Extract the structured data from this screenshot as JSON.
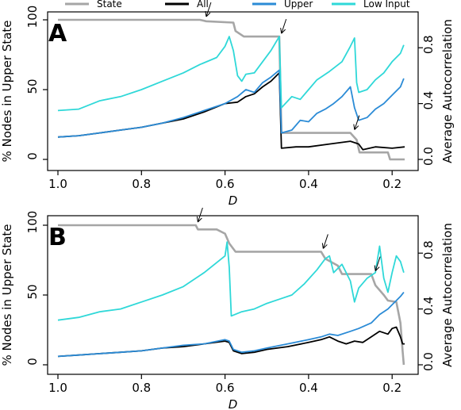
{
  "legend": [
    {
      "label": "State",
      "color": "#a6a6a6"
    },
    {
      "label": "All",
      "color": "#000000"
    },
    {
      "label": "Upper",
      "color": "#2b8bd6"
    },
    {
      "label": "Low Input",
      "color": "#2fd8d8"
    }
  ],
  "chart_data": [
    {
      "panel_label": "A",
      "type": "line",
      "xlabel": "D",
      "ylabel_left": "% Nodes in Upper State",
      "ylabel_right": "Average Autocorrelation",
      "xlim": [
        1.0,
        0.17
      ],
      "x_reversed": true,
      "ylim_left": [
        0,
        100
      ],
      "ylim_right": [
        0,
        1.0
      ],
      "x_ticks": [
        "1.0",
        "0.8",
        "0.6",
        "0.4",
        "0.2"
      ],
      "x_tick_values": [
        1.0,
        0.8,
        0.6,
        0.4,
        0.2
      ],
      "y_ticks_left": [
        "0",
        "50",
        "100"
      ],
      "y_tick_values_left": [
        0,
        50,
        100
      ],
      "y_ticks_right": [
        "0.0",
        "0.4",
        "0.8"
      ],
      "y_tick_values_right": [
        0.0,
        0.4,
        0.8
      ],
      "arrows_at_D": [
        0.645,
        0.465,
        0.29
      ],
      "series": [
        {
          "name": "State",
          "axis": "left",
          "color": "#a6a6a6",
          "points": [
            [
              1.0,
              100
            ],
            [
              0.66,
              100
            ],
            [
              0.645,
              99
            ],
            [
              0.58,
              98
            ],
            [
              0.575,
              92
            ],
            [
              0.555,
              88
            ],
            [
              0.47,
              88
            ],
            [
              0.465,
              19
            ],
            [
              0.3,
              19
            ],
            [
              0.285,
              14
            ],
            [
              0.278,
              5
            ],
            [
              0.21,
              5
            ],
            [
              0.205,
              0
            ],
            [
              0.17,
              0
            ]
          ]
        },
        {
          "name": "All",
          "axis": "right",
          "color": "#000000",
          "points": [
            [
              1.0,
              0.16
            ],
            [
              0.95,
              0.17
            ],
            [
              0.9,
              0.19
            ],
            [
              0.85,
              0.21
            ],
            [
              0.8,
              0.23
            ],
            [
              0.75,
              0.26
            ],
            [
              0.7,
              0.29
            ],
            [
              0.65,
              0.34
            ],
            [
              0.6,
              0.4
            ],
            [
              0.57,
              0.41
            ],
            [
              0.55,
              0.45
            ],
            [
              0.53,
              0.47
            ],
            [
              0.51,
              0.52
            ],
            [
              0.49,
              0.56
            ],
            [
              0.47,
              0.62
            ],
            [
              0.465,
              0.08
            ],
            [
              0.43,
              0.09
            ],
            [
              0.4,
              0.09
            ],
            [
              0.35,
              0.11
            ],
            [
              0.3,
              0.13
            ],
            [
              0.28,
              0.11
            ],
            [
              0.27,
              0.07
            ],
            [
              0.24,
              0.09
            ],
            [
              0.2,
              0.08
            ],
            [
              0.17,
              0.09
            ]
          ]
        },
        {
          "name": "Upper",
          "axis": "right",
          "color": "#2b8bd6",
          "points": [
            [
              1.0,
              0.16
            ],
            [
              0.95,
              0.17
            ],
            [
              0.9,
              0.19
            ],
            [
              0.85,
              0.21
            ],
            [
              0.8,
              0.23
            ],
            [
              0.75,
              0.26
            ],
            [
              0.7,
              0.3
            ],
            [
              0.65,
              0.35
            ],
            [
              0.6,
              0.4
            ],
            [
              0.57,
              0.45
            ],
            [
              0.55,
              0.5
            ],
            [
              0.53,
              0.48
            ],
            [
              0.51,
              0.55
            ],
            [
              0.49,
              0.59
            ],
            [
              0.47,
              0.64
            ],
            [
              0.465,
              0.19
            ],
            [
              0.44,
              0.21
            ],
            [
              0.42,
              0.28
            ],
            [
              0.4,
              0.27
            ],
            [
              0.38,
              0.33
            ],
            [
              0.36,
              0.36
            ],
            [
              0.34,
              0.4
            ],
            [
              0.32,
              0.45
            ],
            [
              0.3,
              0.52
            ],
            [
              0.29,
              0.37
            ],
            [
              0.28,
              0.28
            ],
            [
              0.26,
              0.3
            ],
            [
              0.24,
              0.36
            ],
            [
              0.22,
              0.4
            ],
            [
              0.2,
              0.46
            ],
            [
              0.18,
              0.52
            ],
            [
              0.172,
              0.58
            ]
          ]
        },
        {
          "name": "Low Input",
          "axis": "right",
          "color": "#2fd8d8",
          "points": [
            [
              1.0,
              0.35
            ],
            [
              0.95,
              0.36
            ],
            [
              0.9,
              0.42
            ],
            [
              0.85,
              0.45
            ],
            [
              0.8,
              0.5
            ],
            [
              0.75,
              0.56
            ],
            [
              0.7,
              0.62
            ],
            [
              0.66,
              0.68
            ],
            [
              0.62,
              0.73
            ],
            [
              0.6,
              0.81
            ],
            [
              0.59,
              0.88
            ],
            [
              0.58,
              0.78
            ],
            [
              0.57,
              0.6
            ],
            [
              0.56,
              0.56
            ],
            [
              0.55,
              0.61
            ],
            [
              0.53,
              0.62
            ],
            [
              0.51,
              0.7
            ],
            [
              0.49,
              0.78
            ],
            [
              0.47,
              0.88
            ],
            [
              0.465,
              0.37
            ],
            [
              0.44,
              0.45
            ],
            [
              0.42,
              0.43
            ],
            [
              0.4,
              0.5
            ],
            [
              0.38,
              0.57
            ],
            [
              0.35,
              0.63
            ],
            [
              0.32,
              0.7
            ],
            [
              0.3,
              0.81
            ],
            [
              0.29,
              0.87
            ],
            [
              0.285,
              0.55
            ],
            [
              0.28,
              0.48
            ],
            [
              0.26,
              0.5
            ],
            [
              0.24,
              0.57
            ],
            [
              0.22,
              0.62
            ],
            [
              0.2,
              0.7
            ],
            [
              0.18,
              0.76
            ],
            [
              0.172,
              0.82
            ]
          ]
        }
      ]
    },
    {
      "panel_label": "B",
      "type": "line",
      "xlabel": "D",
      "ylabel_left": "% Nodes in Upper State",
      "ylabel_right": "Average Autocorrelation",
      "xlim": [
        1.0,
        0.17
      ],
      "x_reversed": true,
      "ylim_left": [
        0,
        100
      ],
      "ylim_right": [
        0,
        1.0
      ],
      "x_ticks": [
        "1.0",
        "0.8",
        "0.6",
        "0.4",
        "0.2"
      ],
      "x_tick_values": [
        1.0,
        0.8,
        0.6,
        0.4,
        0.2
      ],
      "y_ticks_left": [
        "0",
        "50",
        "100"
      ],
      "y_tick_values_left": [
        0,
        50,
        100
      ],
      "y_ticks_right": [
        "0.0",
        "0.4",
        "0.8"
      ],
      "y_tick_values_right": [
        0.0,
        0.4,
        0.8
      ],
      "arrows_at_D": [
        0.665,
        0.365,
        0.24
      ],
      "series": [
        {
          "name": "State",
          "axis": "left",
          "color": "#a6a6a6",
          "points": [
            [
              1.0,
              100
            ],
            [
              0.67,
              100
            ],
            [
              0.665,
              97
            ],
            [
              0.62,
              97
            ],
            [
              0.6,
              94
            ],
            [
              0.59,
              87
            ],
            [
              0.575,
              81
            ],
            [
              0.37,
              81
            ],
            [
              0.36,
              76
            ],
            [
              0.33,
              71
            ],
            [
              0.32,
              65
            ],
            [
              0.25,
              65
            ],
            [
              0.24,
              57
            ],
            [
              0.22,
              50
            ],
            [
              0.21,
              46
            ],
            [
              0.19,
              45
            ],
            [
              0.18,
              30
            ],
            [
              0.175,
              10
            ],
            [
              0.172,
              0
            ]
          ]
        },
        {
          "name": "All",
          "axis": "right",
          "color": "#000000",
          "points": [
            [
              1.0,
              0.06
            ],
            [
              0.95,
              0.07
            ],
            [
              0.9,
              0.08
            ],
            [
              0.85,
              0.09
            ],
            [
              0.8,
              0.1
            ],
            [
              0.75,
              0.12
            ],
            [
              0.7,
              0.13
            ],
            [
              0.65,
              0.15
            ],
            [
              0.6,
              0.17
            ],
            [
              0.59,
              0.16
            ],
            [
              0.58,
              0.1
            ],
            [
              0.56,
              0.08
            ],
            [
              0.53,
              0.09
            ],
            [
              0.5,
              0.11
            ],
            [
              0.45,
              0.13
            ],
            [
              0.4,
              0.16
            ],
            [
              0.37,
              0.18
            ],
            [
              0.35,
              0.2
            ],
            [
              0.33,
              0.17
            ],
            [
              0.31,
              0.15
            ],
            [
              0.29,
              0.17
            ],
            [
              0.27,
              0.16
            ],
            [
              0.25,
              0.2
            ],
            [
              0.23,
              0.24
            ],
            [
              0.21,
              0.22
            ],
            [
              0.2,
              0.26
            ],
            [
              0.19,
              0.27
            ],
            [
              0.18,
              0.2
            ],
            [
              0.175,
              0.15
            ],
            [
              0.17,
              0.15
            ]
          ]
        },
        {
          "name": "Upper",
          "axis": "right",
          "color": "#2b8bd6",
          "points": [
            [
              1.0,
              0.06
            ],
            [
              0.95,
              0.07
            ],
            [
              0.9,
              0.08
            ],
            [
              0.85,
              0.09
            ],
            [
              0.8,
              0.1
            ],
            [
              0.75,
              0.12
            ],
            [
              0.7,
              0.14
            ],
            [
              0.65,
              0.15
            ],
            [
              0.6,
              0.18
            ],
            [
              0.59,
              0.17
            ],
            [
              0.58,
              0.11
            ],
            [
              0.56,
              0.09
            ],
            [
              0.53,
              0.1
            ],
            [
              0.5,
              0.12
            ],
            [
              0.45,
              0.15
            ],
            [
              0.4,
              0.18
            ],
            [
              0.37,
              0.2
            ],
            [
              0.35,
              0.22
            ],
            [
              0.33,
              0.21
            ],
            [
              0.3,
              0.24
            ],
            [
              0.28,
              0.26
            ],
            [
              0.25,
              0.3
            ],
            [
              0.23,
              0.36
            ],
            [
              0.21,
              0.4
            ],
            [
              0.2,
              0.43
            ],
            [
              0.19,
              0.46
            ],
            [
              0.18,
              0.49
            ],
            [
              0.172,
              0.52
            ]
          ]
        },
        {
          "name": "Low Input",
          "axis": "right",
          "color": "#2fd8d8",
          "points": [
            [
              1.0,
              0.32
            ],
            [
              0.95,
              0.34
            ],
            [
              0.9,
              0.38
            ],
            [
              0.85,
              0.4
            ],
            [
              0.8,
              0.45
            ],
            [
              0.75,
              0.5
            ],
            [
              0.7,
              0.56
            ],
            [
              0.65,
              0.66
            ],
            [
              0.6,
              0.78
            ],
            [
              0.595,
              0.88
            ],
            [
              0.59,
              0.7
            ],
            [
              0.585,
              0.35
            ],
            [
              0.56,
              0.38
            ],
            [
              0.53,
              0.4
            ],
            [
              0.5,
              0.44
            ],
            [
              0.47,
              0.47
            ],
            [
              0.44,
              0.5
            ],
            [
              0.41,
              0.58
            ],
            [
              0.38,
              0.68
            ],
            [
              0.36,
              0.76
            ],
            [
              0.35,
              0.78
            ],
            [
              0.34,
              0.66
            ],
            [
              0.32,
              0.72
            ],
            [
              0.3,
              0.6
            ],
            [
              0.29,
              0.45
            ],
            [
              0.28,
              0.55
            ],
            [
              0.26,
              0.62
            ],
            [
              0.24,
              0.66
            ],
            [
              0.23,
              0.85
            ],
            [
              0.22,
              0.62
            ],
            [
              0.21,
              0.52
            ],
            [
              0.2,
              0.66
            ],
            [
              0.19,
              0.78
            ],
            [
              0.18,
              0.74
            ],
            [
              0.172,
              0.66
            ]
          ]
        }
      ]
    }
  ]
}
